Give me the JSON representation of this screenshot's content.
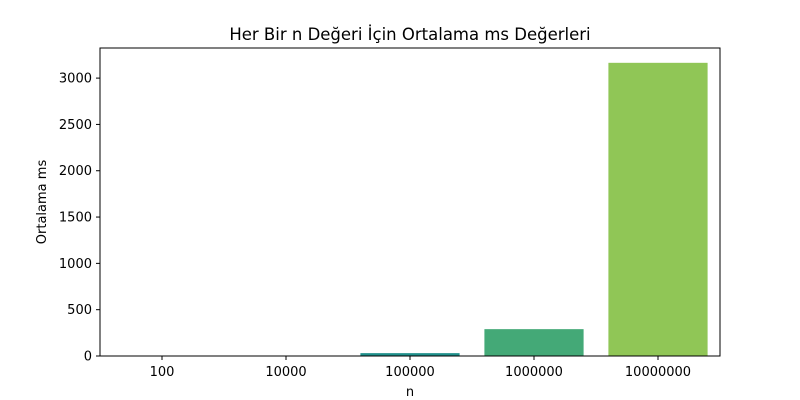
{
  "chart_data": {
    "type": "bar",
    "title": "Her Bir n Değeri İçin Ortalama ms Değerleri",
    "xlabel": "n",
    "ylabel": "Ortalama ms",
    "categories": [
      "100",
      "10000",
      "100000",
      "1000000",
      "10000000"
    ],
    "values": [
      0.02,
      2.5,
      31,
      290,
      3165
    ],
    "colors": [
      "#472c7a",
      "#32648e",
      "#21918c",
      "#44a977",
      "#90c656"
    ],
    "ylim": [
      0,
      3325
    ],
    "yticks": [
      0,
      500,
      1000,
      1500,
      2000,
      2500,
      3000
    ],
    "grid": false
  }
}
